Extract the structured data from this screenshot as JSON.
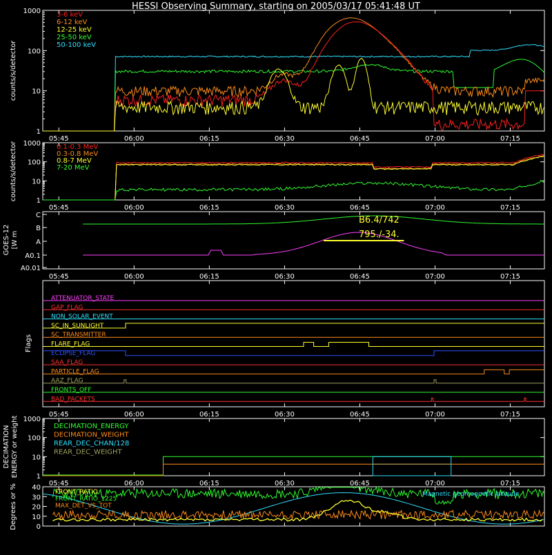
{
  "title": "HESSI Observing Summary, starting on 2005/03/17 05:41:48 UT",
  "time_ticks": [
    "05:45",
    "06:00",
    "06:15",
    "06:30",
    "06:45",
    "07:00",
    "07:15"
  ],
  "time_tick_minutes": [
    3.2,
    18.2,
    33.2,
    48.2,
    63.2,
    78.2,
    93.2
  ],
  "time_range_minutes": [
    0,
    100
  ],
  "chart_data": [
    {
      "type": "line",
      "name": "light-curves",
      "ylabel": "counts/s/detector",
      "scale": "log",
      "ylim": [
        1,
        1000
      ],
      "yticks": [
        "1",
        "10",
        "100",
        "1000"
      ],
      "series": [
        {
          "name": "3-6 keV",
          "color": "#ff2020"
        },
        {
          "name": "6-12 keV",
          "color": "#ff8c1a"
        },
        {
          "name": "12-25 keV",
          "color": "#ffff30"
        },
        {
          "name": "25-50 keV",
          "color": "#30ff30"
        },
        {
          "name": "50-100 keV",
          "color": "#30e0ff"
        }
      ]
    },
    {
      "type": "line",
      "name": "high-energy",
      "ylabel": "counts/s/detector",
      "scale": "log",
      "ylim": [
        1,
        1000
      ],
      "yticks": [
        "1",
        "10",
        "100",
        "1000"
      ],
      "series": [
        {
          "name": "0.1-0.3 MeV",
          "color": "#ff2020"
        },
        {
          "name": "0.3-0.8 MeV",
          "color": "#ff8c1a"
        },
        {
          "name": "0.8-7 MeV",
          "color": "#ffff30"
        },
        {
          "name": "7-20 MeV",
          "color": "#30ff30"
        }
      ]
    },
    {
      "type": "line",
      "name": "goes",
      "ylabel": "GOES-12",
      "ylabel2": "[W m",
      "yticks": [
        "A0.01",
        "A0.1",
        "A",
        "B",
        "C"
      ],
      "annotations": [
        "B6.4/742",
        "795./-34."
      ]
    },
    {
      "type": "line",
      "name": "flags",
      "ylabel": "Flags",
      "flags": [
        {
          "name": "ATTENUATOR_STATE",
          "color": "#ff40ff"
        },
        {
          "name": "GAP_FLAG",
          "color": "#ff3030"
        },
        {
          "name": "NON_SOLAR_EVENT",
          "color": "#30e0ff"
        },
        {
          "name": "SC_IN_SUNLIGHT",
          "color": "#ffff30"
        },
        {
          "name": "SC_TRANSMITTER",
          "color": "#ff8c1a"
        },
        {
          "name": "FLARE_FLAG",
          "color": "#ffff30"
        },
        {
          "name": "ECLIPSE_FLAG",
          "color": "#3050ff"
        },
        {
          "name": "SAA_FLAG",
          "color": "#ff3030"
        },
        {
          "name": "PARTICLE_FLAG",
          "color": "#ff8c1a"
        },
        {
          "name": "AAZ_FLAG",
          "color": "#a0a060"
        },
        {
          "name": "FRONTS_OFF",
          "color": "#30ff30"
        },
        {
          "name": "BAD_PACKETS",
          "color": "#ff3030"
        }
      ]
    },
    {
      "type": "line",
      "name": "decimation",
      "ylabel": "DECIMATION",
      "ylabel2": "ENERGY or weight",
      "scale": "log",
      "ylim": [
        1,
        1000
      ],
      "yticks": [
        "1",
        "10",
        "100",
        "1000"
      ],
      "series": [
        {
          "name": "DECIMATION_ENERGY",
          "color": "#30ff30"
        },
        {
          "name": "DECIMATION_WEIGHT",
          "color": "#ff8c1a"
        },
        {
          "name": "REAR_DEC_CHAN/128",
          "color": "#30e0ff"
        },
        {
          "name": "REAR_DEC_WEIGHT",
          "color": "#a0a060"
        }
      ]
    },
    {
      "type": "line",
      "name": "ratios",
      "ylabel": "Degrees or %",
      "ylim": [
        0,
        40
      ],
      "yticks": [
        "0",
        "10",
        "20",
        "30",
        "40"
      ],
      "series": [
        {
          "name": "FRONT_RATIO",
          "color": "#ffff30"
        },
        {
          "name": "FRONT_RATIO_1225",
          "color": "#30ff30"
        },
        {
          "name": "MAX_DET_VS_TOT",
          "color": "#ff8c1a"
        },
        {
          "name": "Magnetic geomagnetic latitude",
          "color": "#30e0ff"
        }
      ]
    }
  ],
  "colors": {
    "background": "#000000",
    "axis": "#ffffff",
    "red": "#ff2020",
    "orange": "#ff8c1a",
    "yellow": "#ffff30",
    "green": "#30ff30",
    "cyan": "#30e0ff",
    "magenta": "#ff40ff",
    "blue": "#3050ff",
    "olive": "#a0a060"
  }
}
